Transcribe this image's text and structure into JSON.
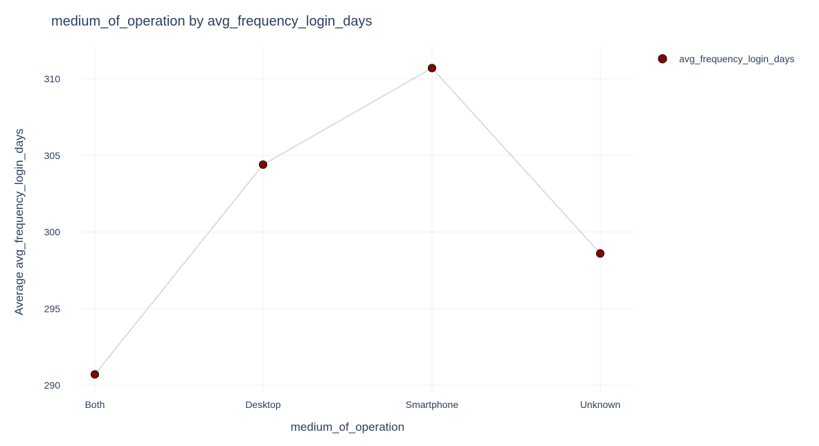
{
  "chart_data": {
    "type": "scatter",
    "title": "medium_of_operation by avg_frequency_login_days",
    "xlabel": "medium_of_operation",
    "ylabel": "Average avg_frequency_login_days",
    "categories": [
      "Both",
      "Desktop",
      "Smartphone",
      "Unknown"
    ],
    "series": [
      {
        "name": "avg_frequency_login_days",
        "values": [
          290.7,
          304.4,
          310.7,
          298.6
        ],
        "marker_color": "#8b0000",
        "marker_outline": "#1a1a1a",
        "line_color": "#d3d3d3"
      }
    ],
    "ylim": [
      289.5,
      312.2
    ],
    "yticks": [
      290,
      295,
      300,
      305,
      310
    ],
    "grid": true,
    "legend_position": "top-right"
  }
}
